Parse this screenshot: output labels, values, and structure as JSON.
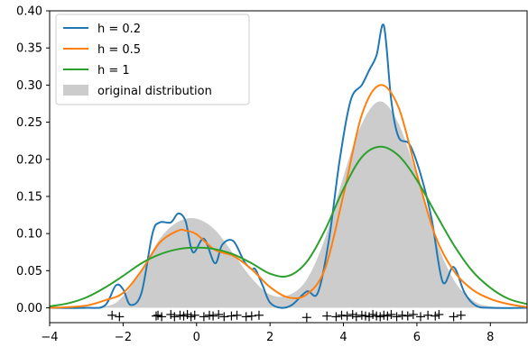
{
  "chart_data": {
    "type": "line",
    "title": "",
    "xlabel": "",
    "ylabel": "",
    "xlim": [
      -4,
      9
    ],
    "ylim": [
      -0.02,
      0.4
    ],
    "x_ticks": [
      -4,
      -2,
      0,
      2,
      4,
      6,
      8
    ],
    "x_tick_labels": [
      "−4",
      "−2",
      "0",
      "2",
      "4",
      "6",
      "8"
    ],
    "y_ticks": [
      0.0,
      0.05,
      0.1,
      0.15,
      0.2,
      0.25,
      0.3,
      0.35,
      0.4
    ],
    "y_tick_labels": [
      "0.00",
      "0.05",
      "0.10",
      "0.15",
      "0.20",
      "0.25",
      "0.30",
      "0.35",
      "0.40"
    ],
    "grid": false,
    "legend_position": "top-left",
    "legend": [
      "h = 0.2",
      "h = 0.5",
      "h = 1",
      "original distribution"
    ],
    "colors": {
      "h02": "#1f77b4",
      "h05": "#ff7f0e",
      "h1": "#2ca02c",
      "original": "#cccccc",
      "samples": "#000000"
    },
    "original_distribution": {
      "name": "original distribution",
      "x": [
        -4,
        -2.5,
        -2,
        -1.5,
        -1,
        -0.5,
        0,
        0.5,
        1,
        1.5,
        2,
        2.5,
        3,
        3.5,
        4,
        4.5,
        5,
        5.5,
        6,
        6.5,
        7,
        7.5,
        8,
        9
      ],
      "y": [
        0.0,
        0.002,
        0.016,
        0.05,
        0.093,
        0.116,
        0.12,
        0.105,
        0.073,
        0.04,
        0.018,
        0.017,
        0.038,
        0.094,
        0.177,
        0.248,
        0.278,
        0.248,
        0.177,
        0.094,
        0.038,
        0.011,
        0.002,
        0.0
      ]
    },
    "series": [
      {
        "name": "h = 0.2",
        "x": [
          -4,
          -3,
          -2.5,
          -2.2,
          -2.0,
          -1.8,
          -1.5,
          -1.2,
          -1.0,
          -0.7,
          -0.5,
          -0.3,
          -0.1,
          0.2,
          0.5,
          0.7,
          1.0,
          1.3,
          1.5,
          1.6,
          1.8,
          2.0,
          2.3,
          2.6,
          3.0,
          3.3,
          3.6,
          3.9,
          4.2,
          4.5,
          4.7,
          4.9,
          5.1,
          5.3,
          5.5,
          5.8,
          6.1,
          6.4,
          6.7,
          7.0,
          7.3,
          7.6,
          8,
          9
        ],
        "y": [
          0.0,
          0.0,
          0.003,
          0.03,
          0.025,
          0.004,
          0.02,
          0.1,
          0.115,
          0.115,
          0.127,
          0.117,
          0.075,
          0.093,
          0.06,
          0.085,
          0.09,
          0.062,
          0.052,
          0.052,
          0.03,
          0.007,
          0.0,
          0.004,
          0.022,
          0.02,
          0.09,
          0.2,
          0.28,
          0.3,
          0.32,
          0.34,
          0.38,
          0.28,
          0.23,
          0.22,
          0.18,
          0.12,
          0.035,
          0.055,
          0.02,
          0.003,
          0.0,
          0.0
        ]
      },
      {
        "name": "h = 0.5",
        "x": [
          -4,
          -3.5,
          -3,
          -2.5,
          -2,
          -1.5,
          -1,
          -0.5,
          -0.3,
          0,
          0.5,
          1,
          1.5,
          2,
          2.5,
          3,
          3.5,
          4,
          4.5,
          5,
          5.5,
          6,
          6.5,
          7,
          7.5,
          8,
          8.5,
          9
        ],
        "y": [
          0.0,
          0.001,
          0.003,
          0.01,
          0.02,
          0.05,
          0.088,
          0.104,
          0.104,
          0.099,
          0.078,
          0.07,
          0.052,
          0.028,
          0.014,
          0.018,
          0.053,
          0.152,
          0.26,
          0.3,
          0.27,
          0.18,
          0.097,
          0.05,
          0.025,
          0.012,
          0.005,
          0.001
        ]
      },
      {
        "name": "h = 1",
        "x": [
          -4,
          -3.5,
          -3,
          -2.5,
          -2,
          -1.5,
          -1,
          -0.5,
          0,
          0.5,
          1,
          1.5,
          2,
          2.5,
          3,
          3.5,
          4,
          4.5,
          5,
          5.5,
          6,
          6.5,
          7,
          7.5,
          8,
          8.5,
          9
        ],
        "y": [
          0.002,
          0.006,
          0.014,
          0.027,
          0.043,
          0.06,
          0.072,
          0.079,
          0.081,
          0.079,
          0.072,
          0.06,
          0.046,
          0.043,
          0.062,
          0.105,
          0.16,
          0.203,
          0.217,
          0.205,
          0.172,
          0.128,
          0.085,
          0.05,
          0.027,
          0.012,
          0.005
        ]
      }
    ],
    "samples": {
      "marker": "+",
      "x": [
        -2.3,
        -2.1,
        -1.1,
        -1.05,
        -0.95,
        -0.7,
        -0.6,
        -0.45,
        -0.35,
        -0.25,
        -0.15,
        -0.05,
        0.2,
        0.35,
        0.45,
        0.6,
        0.75,
        0.95,
        1.1,
        1.35,
        1.5,
        1.7,
        3.0,
        3.55,
        3.8,
        3.95,
        4.1,
        4.25,
        4.35,
        4.5,
        4.6,
        4.7,
        4.8,
        4.9,
        5.0,
        5.1,
        5.2,
        5.3,
        5.45,
        5.6,
        5.75,
        5.9,
        6.1,
        6.3,
        6.5,
        6.6,
        7.0,
        7.2
      ],
      "y": [
        -0.01,
        -0.012,
        -0.011,
        -0.01,
        -0.012,
        -0.009,
        -0.012,
        -0.01,
        -0.011,
        -0.009,
        -0.012,
        -0.01,
        -0.012,
        -0.01,
        -0.011,
        -0.009,
        -0.012,
        -0.011,
        -0.01,
        -0.012,
        -0.011,
        -0.01,
        -0.013,
        -0.011,
        -0.012,
        -0.01,
        -0.011,
        -0.009,
        -0.012,
        -0.01,
        -0.011,
        -0.012,
        -0.009,
        -0.011,
        -0.012,
        -0.01,
        -0.011,
        -0.009,
        -0.012,
        -0.01,
        -0.011,
        -0.009,
        -0.012,
        -0.01,
        -0.011,
        -0.009,
        -0.012,
        -0.01
      ]
    }
  }
}
